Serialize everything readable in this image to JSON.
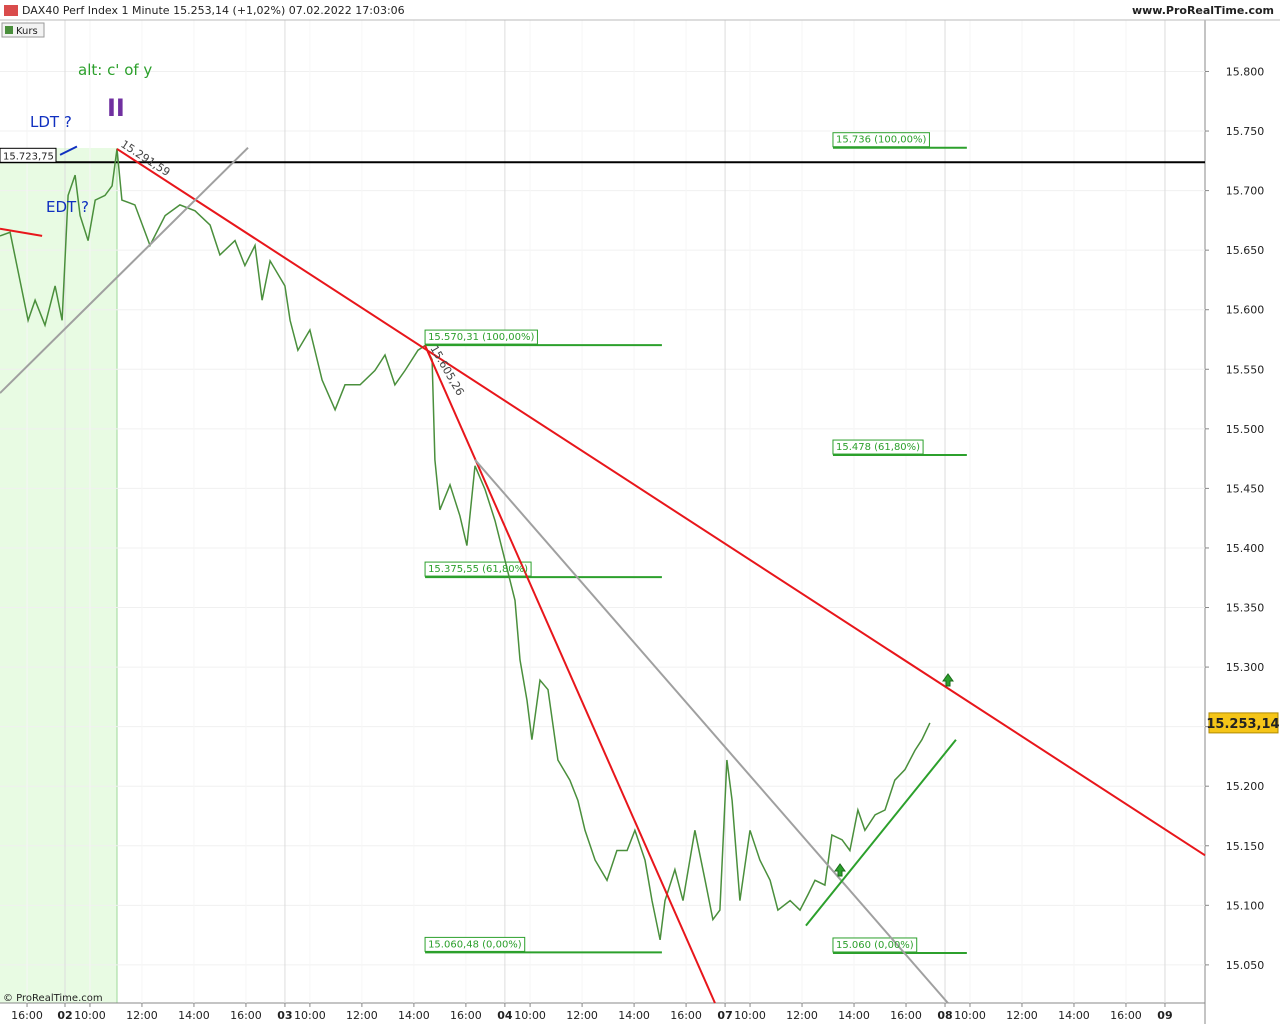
{
  "header": {
    "title": "DAX40 Perf Index 1 Minute 15.253,14 (+1,02%) 07.02.2022 17:03:06",
    "site": "www.ProRealTime.com",
    "copyright": "© ProRealTime.com"
  },
  "chart_data": {
    "type": "line",
    "series": [
      {
        "name": "Kurs",
        "color": "#4a8f3c",
        "x": [
          -1.04,
          -0.65,
          -0.35,
          0.04,
          0.31,
          0.69,
          1.08,
          1.35,
          1.58,
          1.85,
          2.04,
          2.35,
          2.62,
          3.0,
          3.27,
          3.46,
          3.65,
          4.15,
          4.73,
          5.31,
          5.88,
          6.46,
          7.04,
          7.42,
          8.0,
          8.38,
          8.77,
          9.04,
          9.35,
          9.92,
          10.12,
          10.42,
          10.88,
          11.35,
          11.85,
          12.23,
          12.81,
          13.38,
          13.77,
          14.15,
          14.54,
          15.04,
          15.31,
          15.58,
          15.69,
          15.88,
          16.27,
          16.65,
          16.92,
          17.23,
          17.62,
          18.0,
          18.38,
          18.77,
          18.96,
          19.23,
          19.42,
          19.73,
          20.04,
          20.42,
          20.88,
          21.19,
          21.46,
          21.85,
          22.31,
          22.69,
          23.08,
          23.38,
          23.77,
          24.04,
          24.35,
          24.54,
          24.92,
          25.23,
          25.69,
          26.08,
          26.38,
          26.65,
          26.92,
          27.12,
          27.42,
          27.81,
          28.19,
          28.58,
          28.88,
          29.35,
          29.73,
          30.04,
          30.31,
          30.69,
          30.96,
          31.35,
          31.65,
          31.96,
          32.23,
          32.62,
          33.0,
          33.38,
          33.77,
          34.15,
          34.42,
          34.73
        ],
        "values": [
          15662,
          15665,
          15633,
          15591,
          15608,
          15587,
          15620,
          15591,
          15696,
          15713,
          15679,
          15658,
          15692,
          15696,
          15704,
          15735,
          15692,
          15688,
          15654,
          15679,
          15688,
          15683,
          15671,
          15646,
          15658,
          15637,
          15654,
          15608,
          15641,
          15620,
          15591,
          15566,
          15583,
          15541,
          15516,
          15537,
          15537,
          15549,
          15562,
          15537,
          15549,
          15566,
          15570,
          15558,
          15474,
          15432,
          15453,
          15427,
          15402,
          15469,
          15449,
          15423,
          15390,
          15356,
          15306,
          15272,
          15239,
          15289,
          15281,
          15222,
          15205,
          15188,
          15163,
          15138,
          15121,
          15146,
          15146,
          15163,
          15138,
          15104,
          15071,
          15104,
          15130,
          15104,
          15163,
          15121,
          15088,
          15096,
          15222,
          15188,
          15104,
          15163,
          15138,
          15121,
          15096,
          15104,
          15096,
          15109,
          15121,
          15117,
          15159,
          15155,
          15146,
          15180,
          15163,
          15176,
          15180,
          15205,
          15214,
          15230,
          15239,
          15253.14
        ]
      }
    ],
    "xlim": [
      -1.04,
      45.31
    ],
    "xticks": [
      {
        "value": 0,
        "label": "16:00"
      },
      {
        "value": 1.46,
        "label": "02"
      },
      {
        "value": 2.42,
        "label": "10:00"
      },
      {
        "value": 4.42,
        "label": "12:00"
      },
      {
        "value": 6.42,
        "label": "14:00"
      },
      {
        "value": 8.42,
        "label": "16:00"
      },
      {
        "value": 9.92,
        "label": "03"
      },
      {
        "value": 10.88,
        "label": "10:00"
      },
      {
        "value": 12.88,
        "label": "12:00"
      },
      {
        "value": 14.88,
        "label": "14:00"
      },
      {
        "value": 16.88,
        "label": "16:00"
      },
      {
        "value": 18.38,
        "label": "04"
      },
      {
        "value": 19.35,
        "label": "10:00"
      },
      {
        "value": 21.35,
        "label": "12:00"
      },
      {
        "value": 23.35,
        "label": "14:00"
      },
      {
        "value": 25.35,
        "label": "16:00"
      },
      {
        "value": 26.85,
        "label": "07"
      },
      {
        "value": 27.81,
        "label": "10:00"
      },
      {
        "value": 29.81,
        "label": "12:00"
      },
      {
        "value": 31.81,
        "label": "14:00"
      },
      {
        "value": 33.81,
        "label": "16:00"
      },
      {
        "value": 35.31,
        "label": "08"
      },
      {
        "value": 36.27,
        "label": "10:00"
      },
      {
        "value": 38.27,
        "label": "12:00"
      },
      {
        "value": 40.27,
        "label": "14:00"
      },
      {
        "value": 42.27,
        "label": "16:00"
      },
      {
        "value": 43.77,
        "label": "09"
      }
    ],
    "ylim": [
      15018,
      15860
    ],
    "yticks": [
      {
        "value": 15800,
        "label": "15.800"
      },
      {
        "value": 15750,
        "label": "15.750"
      },
      {
        "value": 15700,
        "label": "15.700"
      },
      {
        "value": 15650,
        "label": "15.650"
      },
      {
        "value": 15600,
        "label": "15.600"
      },
      {
        "value": 15550,
        "label": "15.550"
      },
      {
        "value": 15500,
        "label": "15.500"
      },
      {
        "value": 15450,
        "label": "15.450"
      },
      {
        "value": 15400,
        "label": "15.400"
      },
      {
        "value": 15350,
        "label": "15.350"
      },
      {
        "value": 15300,
        "label": "15.300"
      },
      {
        "value": 15250,
        "label": "15.250"
      },
      {
        "value": 15200,
        "label": "15.200"
      },
      {
        "value": 15150,
        "label": "15.150"
      },
      {
        "value": 15100,
        "label": "15.100"
      },
      {
        "value": 15050,
        "label": "15.050"
      }
    ],
    "grid": true,
    "last_price": {
      "value": 15253.14,
      "label": "15.253,14"
    },
    "hline": {
      "value": 15723.75,
      "label": "15.723,75",
      "color": "#000000"
    },
    "levels": [
      {
        "value": 15736,
        "label": "15.736 (100,00%)",
        "x": [
          31.0,
          36.15
        ]
      },
      {
        "value": 15478,
        "label": "15.478 (61,80%)",
        "x": [
          31.0,
          36.15
        ]
      },
      {
        "value": 15060,
        "label": "15.060 (0,00%)",
        "x": [
          31.0,
          36.15
        ]
      },
      {
        "value": 15570.31,
        "label": "15.570,31 (100,00%)",
        "x": [
          15.31,
          24.42
        ]
      },
      {
        "value": 15375.55,
        "label": "15.375,55 (61,80%)",
        "x": [
          15.31,
          24.42
        ]
      },
      {
        "value": 15060.48,
        "label": "15.060,48 (0,00%)",
        "x": [
          15.31,
          24.42
        ]
      }
    ],
    "level_color": "#2ca02c",
    "trendlines": [
      {
        "x": [
          3.46,
          45.31
        ],
        "values": [
          15735,
          15142
        ],
        "color": "#e8161b"
      },
      {
        "x": [
          15.31,
          26.46
        ],
        "values": [
          15570,
          15018
        ],
        "color": "#e8161b"
      },
      {
        "x": [
          -1.04,
          8.5
        ],
        "values": [
          15530,
          15736
        ],
        "color": "#a0a0a0"
      },
      {
        "x": [
          17.23,
          35.42
        ],
        "values": [
          15474,
          15018
        ],
        "color": "#a0a0a0"
      },
      {
        "x": [
          29.96,
          35.73
        ],
        "values": [
          15083,
          15239
        ],
        "color": "#2ca02c"
      },
      {
        "x": [
          -1.04,
          0.58
        ],
        "values": [
          15668,
          15662
        ],
        "color": "#e8161b"
      },
      {
        "x": [
          1.27,
          1.92
        ],
        "values": [
          15730,
          15737
        ],
        "color": "#1030c0"
      }
    ],
    "annotations": [
      "alt: c' of y",
      "II",
      "LDT ?",
      "EDT ?",
      "15.291,59",
      "15.605,26"
    ]
  }
}
